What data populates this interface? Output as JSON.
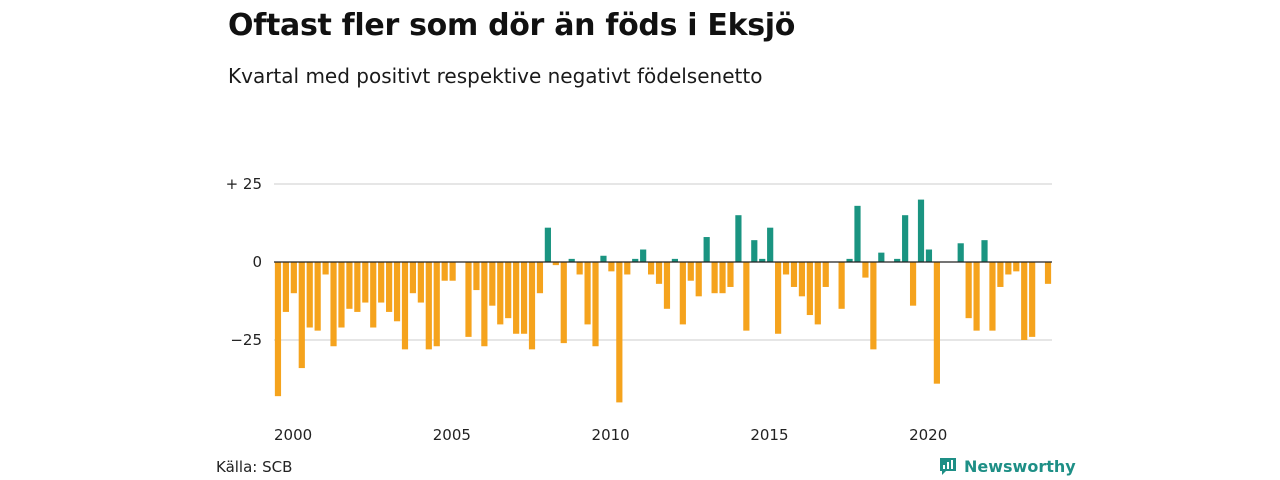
{
  "title": "Oftast fler som dör än föds i Eksjö",
  "subtitle": "Kvartal med positivt respektive negativt födelsenetto",
  "source": "Källa: SCB",
  "brand": {
    "name": "Newsworthy",
    "color": "#1e8f86",
    "icon": "newsworthy-logo-icon"
  },
  "colors": {
    "positive": "#1a9481",
    "negative": "#f5a31d",
    "grid": "#dddddd",
    "zero": "#222222"
  },
  "chart_data": {
    "type": "bar",
    "x_start": 2000,
    "quarters_per_year": 4,
    "values": [
      -43,
      -16,
      -10,
      -34,
      -21,
      -22,
      -4,
      -27,
      -21,
      -15,
      -16,
      -13,
      -21,
      -13,
      -16,
      -19,
      -28,
      -10,
      -13,
      -28,
      -27,
      -6,
      -6,
      0,
      -24,
      -9,
      -27,
      -14,
      -20,
      -18,
      -23,
      -23,
      -28,
      -10,
      11,
      -1,
      -26,
      1,
      -4,
      -20,
      -27,
      2,
      -3,
      -45,
      -4,
      1,
      4,
      -4,
      -7,
      -15,
      1,
      -20,
      -6,
      -11,
      8,
      -10,
      -10,
      -8,
      15,
      -22,
      7,
      1,
      11,
      -23,
      -4,
      -8,
      -11,
      -17,
      -20,
      -8,
      0,
      -15,
      1,
      18,
      -5,
      -28,
      3,
      0,
      1,
      15,
      -14,
      20,
      4,
      -39,
      0,
      0,
      6,
      -18,
      -22,
      7,
      -22,
      -8,
      -4,
      -3,
      -25,
      -24,
      0,
      -7
    ],
    "y_ticks": [
      25,
      0,
      -25
    ],
    "y_tick_labels": [
      "+ 25",
      "0",
      "−25"
    ],
    "x_ticks": [
      2000,
      2005,
      2010,
      2015,
      2020
    ],
    "x_tick_labels": [
      "2000",
      "2005",
      "2010",
      "2015",
      "2020"
    ],
    "ylim": [
      -47,
      27
    ],
    "grid": true,
    "legend": "none"
  }
}
